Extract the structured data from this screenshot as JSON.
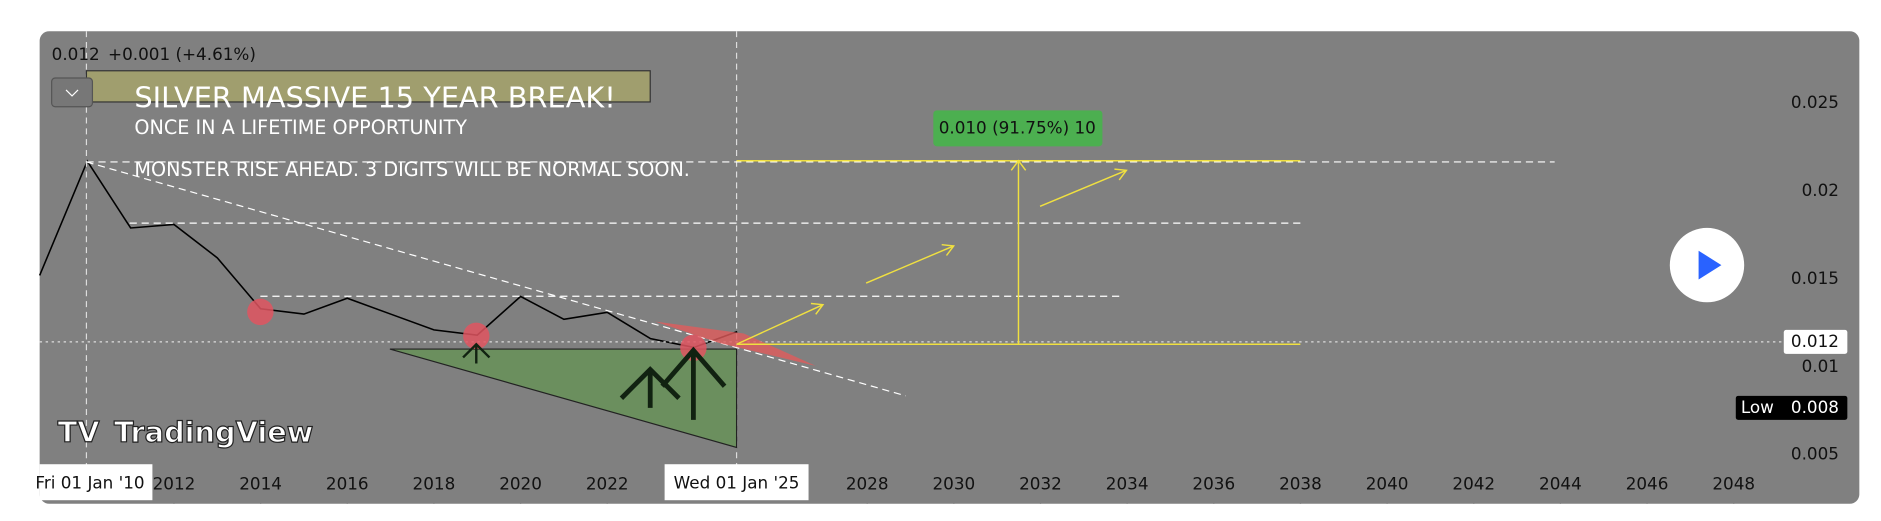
{
  "chart_data": {
    "type": "line",
    "header": {
      "price": 0.012,
      "change": "+0.001 (+4.61%)"
    },
    "annotations": {
      "title": "SILVER MASSIVE 15 YEAR BREAK!",
      "subtitle": "ONCE IN A LIFETIME OPPORTUNITY",
      "note": "MONSTER RISE AHEAD. 3 DIGITS WILL BE NORMAL SOON.",
      "measure": "0.010 (91.75%) 10"
    },
    "crosshair_labels": [
      "Fri 01 Jan '10",
      "Wed 01 Jan '25"
    ],
    "low": {
      "label": "Low",
      "value": 0.008
    },
    "logo": "TradingView",
    "x": [
      2008.9,
      2010,
      2011,
      2012,
      2013,
      2014,
      2015,
      2016,
      2017,
      2018,
      2019,
      2020,
      2021,
      2022,
      2023,
      2024,
      2025
    ],
    "values": [
      0.0152,
      0.0217,
      0.0179,
      0.0181,
      0.0162,
      0.0133,
      0.013,
      0.0139,
      0.013,
      0.0121,
      0.0118,
      0.014,
      0.0127,
      0.0131,
      0.0116,
      0.0111,
      0.012
    ],
    "color": "#000000",
    "xlim": [
      2008.9,
      2049.1
    ],
    "ylim": [
      0.0022,
      0.0291
    ],
    "xticks": [
      2012,
      2014,
      2016,
      2018,
      2020,
      2022,
      2028,
      2030,
      2032,
      2034,
      2036,
      2038,
      2040,
      2042,
      2044,
      2046,
      2048
    ],
    "yticks": [
      0.005,
      0.01,
      0.015,
      0.02,
      0.025
    ]
  }
}
